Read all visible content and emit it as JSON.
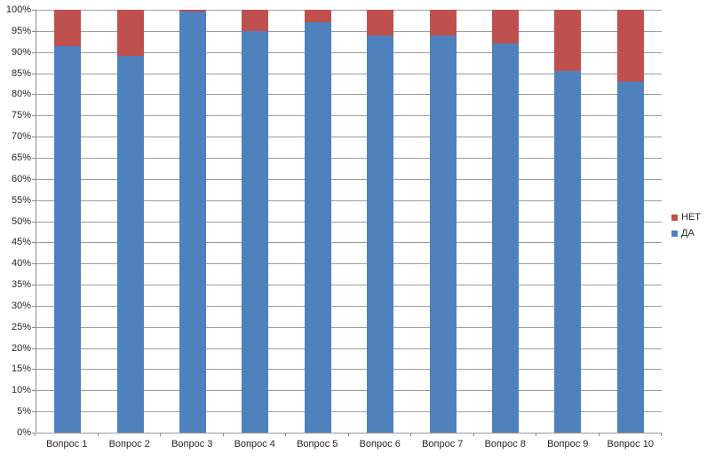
{
  "chart_data": {
    "type": "bar",
    "subtype": "stacked-100-percent-column",
    "title": "",
    "xlabel": "",
    "ylabel": "",
    "categories": [
      "Вопрос 1",
      "Вопрос 2",
      "Вопрос 3",
      "Вопрос 4",
      "Вопрос 5",
      "Вопрос 6",
      "Вопрос 7",
      "Вопрос 8",
      "Вопрос 9",
      "Вопрос 10"
    ],
    "series": [
      {
        "name": "ДА",
        "color": "#4F81BD",
        "values": [
          91.5,
          89,
          99.5,
          95,
          97,
          94,
          94,
          92,
          85.5,
          83
        ]
      },
      {
        "name": "НЕТ",
        "color": "#C0504D",
        "values": [
          8.5,
          11,
          0.5,
          5,
          3,
          6,
          6,
          8,
          14.5,
          17
        ]
      }
    ],
    "y_axis": {
      "min": 0,
      "max": 100,
      "step": 5,
      "format": "percent",
      "tick_labels": [
        "0%",
        "5%",
        "10%",
        "15%",
        "20%",
        "25%",
        "30%",
        "35%",
        "40%",
        "45%",
        "50%",
        "55%",
        "60%",
        "65%",
        "70%",
        "75%",
        "80%",
        "85%",
        "90%",
        "95%",
        "100%"
      ]
    },
    "grid": true,
    "legend": {
      "position": "right",
      "entries": [
        {
          "label": "НЕТ",
          "color": "#C0504D"
        },
        {
          "label": "ДА",
          "color": "#4F81BD"
        }
      ]
    }
  },
  "colors": {
    "background": "#FFFFFF",
    "gridline": "#9C9C9C",
    "axis_line": "#8A8A8A",
    "text": "#262626",
    "series_da": "#4F81BD",
    "series_net": "#C0504D"
  }
}
